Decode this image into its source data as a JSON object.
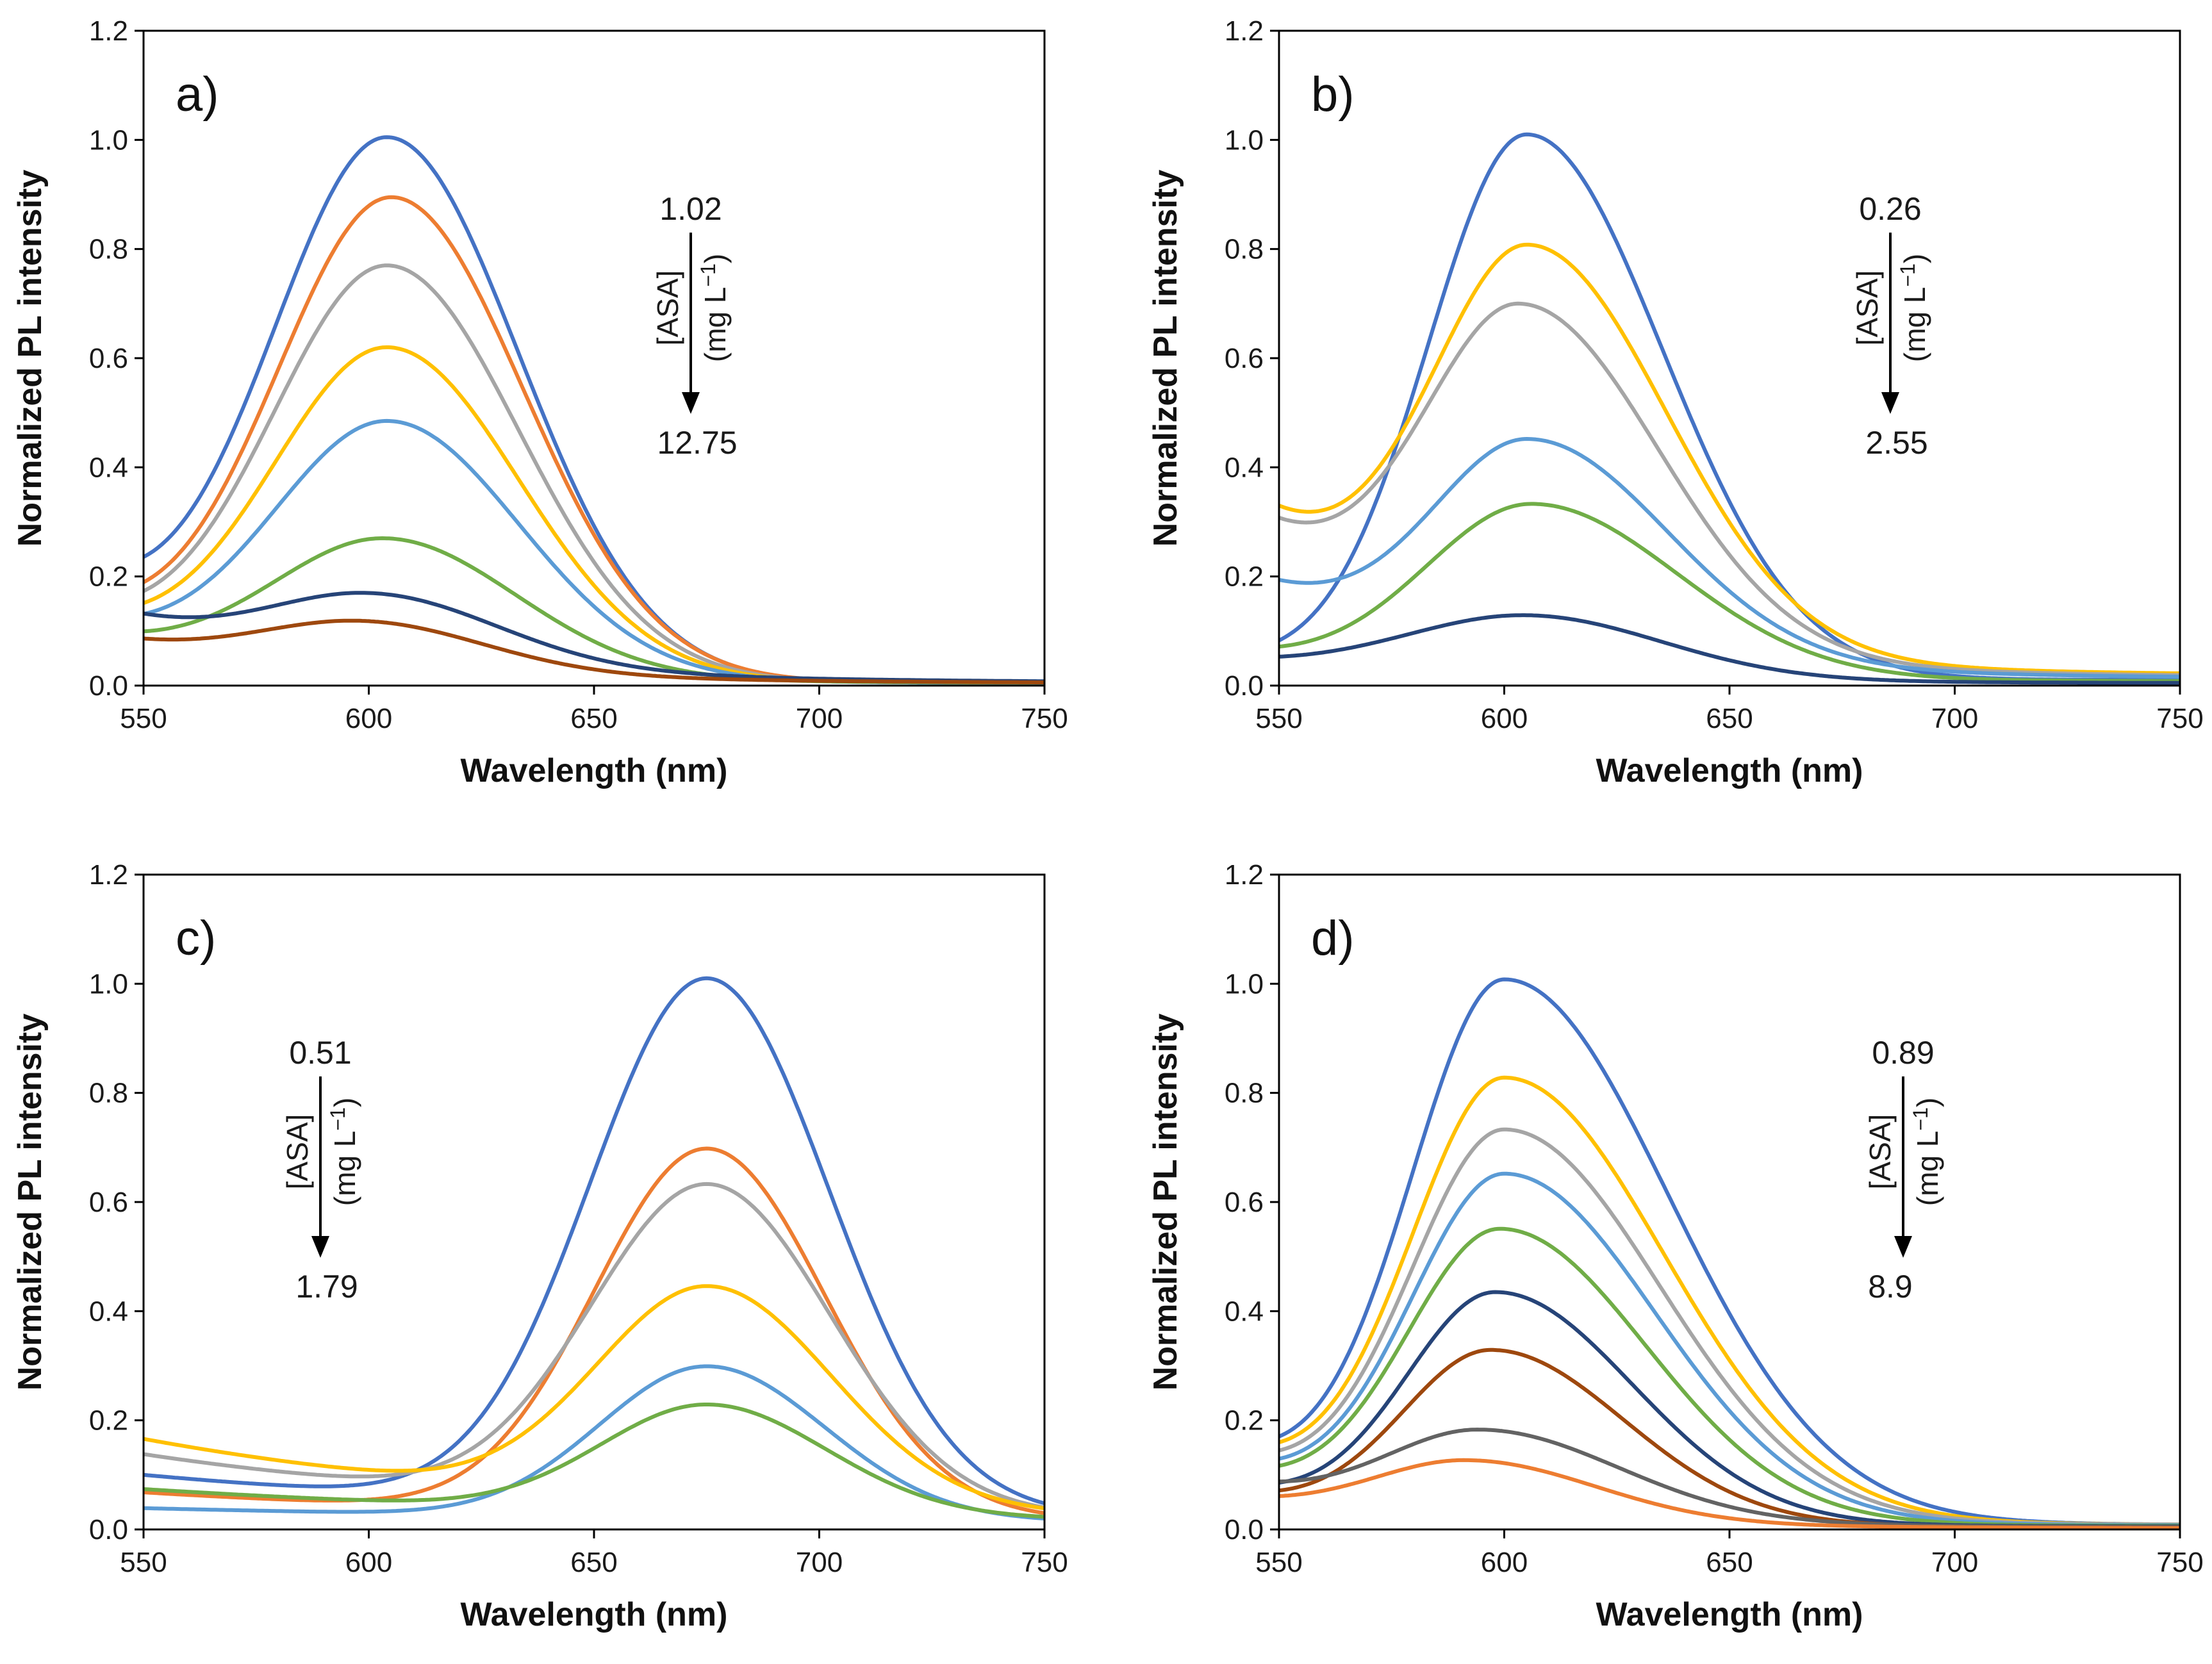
{
  "chart_data": [
    {
      "type": "line",
      "panel_label": "a)",
      "xlabel": "Wavelength (nm)",
      "ylabel": "Normalized PL intensity",
      "xlim": [
        550,
        750
      ],
      "ylim": [
        0,
        1.2
      ],
      "xticks": [
        "550",
        "600",
        "650",
        "700",
        "750"
      ],
      "yticks": [
        "0.0",
        "0.2",
        "0.4",
        "0.6",
        "0.8",
        "1.0",
        "1.2"
      ],
      "annotation": {
        "top": "1.02",
        "bottom": "12.75",
        "label1": "[ASA]",
        "label2": "(mg L",
        "sup": "−1",
        "label2_end": ")",
        "side": "right"
      },
      "series": [
        {
          "name": "1.02",
          "color": "#4472C4",
          "peak": 604,
          "amp": 1.0,
          "sigmaL": 26,
          "sigmaR": 29,
          "base0": 0.13,
          "baseDecay": 10,
          "floor": 0.005
        },
        {
          "name": "s2",
          "color": "#ED7D31",
          "peak": 605,
          "amp": 0.89,
          "sigmaL": 26,
          "sigmaR": 29,
          "base0": 0.1,
          "baseDecay": 12,
          "floor": 0.005
        },
        {
          "name": "s3",
          "color": "#A5A5A5",
          "peak": 604,
          "amp": 0.765,
          "sigmaL": 26,
          "sigmaR": 29,
          "base0": 0.09,
          "baseDecay": 12,
          "floor": 0.005
        },
        {
          "name": "s4",
          "color": "#FFC000",
          "peak": 604,
          "amp": 0.615,
          "sigmaL": 26,
          "sigmaR": 29,
          "base0": 0.085,
          "baseDecay": 12,
          "floor": 0.005
        },
        {
          "name": "s5",
          "color": "#5B9BD5",
          "peak": 604,
          "amp": 0.48,
          "sigmaL": 26,
          "sigmaR": 29,
          "base0": 0.08,
          "baseDecay": 12,
          "floor": 0.005
        },
        {
          "name": "s6",
          "color": "#70AD47",
          "peak": 603,
          "amp": 0.265,
          "sigmaL": 26,
          "sigmaR": 29,
          "base0": 0.07,
          "baseDecay": 14,
          "floor": 0.005
        },
        {
          "name": "s7",
          "color": "#264478",
          "peak": 598,
          "amp": 0.165,
          "sigmaL": 25,
          "sigmaR": 28,
          "base0": 0.12,
          "baseDecay": 18,
          "floor": 0.005
        },
        {
          "name": "12.75",
          "color": "#9E480E",
          "peak": 596,
          "amp": 0.115,
          "sigmaL": 25,
          "sigmaR": 27,
          "base0": 0.075,
          "baseDecay": 18,
          "floor": 0.004
        }
      ]
    },
    {
      "type": "line",
      "panel_label": "b)",
      "xlabel": "Wavelength (nm)",
      "ylabel": "Normalized PL intensity",
      "xlim": [
        550,
        750
      ],
      "ylim": [
        0,
        1.2
      ],
      "xticks": [
        "550",
        "600",
        "650",
        "700",
        "750"
      ],
      "yticks": [
        "0.0",
        "0.2",
        "0.4",
        "0.6",
        "0.8",
        "1.0",
        "1.2"
      ],
      "annotation": {
        "top": "0.26",
        "bottom": "2.55",
        "label1": "[ASA]",
        "label2": "(mg L",
        "sup": "−1",
        "label2_end": ")",
        "side": "right"
      },
      "series": [
        {
          "name": "0.26",
          "color": "#4472C4",
          "peak": 605,
          "amp": 1.0,
          "sigmaL": 22,
          "sigmaR": 30,
          "base0": 0.03,
          "baseDecay": 15,
          "floor": 0.01
        },
        {
          "name": "s2",
          "color": "#FFC000",
          "peak": 605,
          "amp": 0.79,
          "sigmaL": 22,
          "sigmaR": 30,
          "base0": 0.29,
          "baseDecay": 16,
          "floor": 0.018
        },
        {
          "name": "s3",
          "color": "#A5A5A5",
          "peak": 603,
          "amp": 0.685,
          "sigmaL": 22,
          "sigmaR": 30,
          "base0": 0.27,
          "baseDecay": 16,
          "floor": 0.015
        },
        {
          "name": "s4",
          "color": "#5B9BD5",
          "peak": 605,
          "amp": 0.44,
          "sigmaL": 22,
          "sigmaR": 30,
          "base0": 0.17,
          "baseDecay": 18,
          "floor": 0.012
        },
        {
          "name": "s5",
          "color": "#70AD47",
          "peak": 606,
          "amp": 0.325,
          "sigmaL": 24,
          "sigmaR": 32,
          "base0": 0.045,
          "baseDecay": 15,
          "floor": 0.008
        },
        {
          "name": "2.55",
          "color": "#264478",
          "peak": 604,
          "amp": 0.125,
          "sigmaL": 28,
          "sigmaR": 30,
          "base0": 0.035,
          "baseDecay": 18,
          "floor": 0.004
        }
      ]
    },
    {
      "type": "line",
      "panel_label": "c)",
      "xlabel": "Wavelength (nm)",
      "ylabel": "Normalized PL intensity",
      "xlim": [
        550,
        750
      ],
      "ylim": [
        0,
        1.2
      ],
      "xticks": [
        "550",
        "600",
        "650",
        "700",
        "750"
      ],
      "yticks": [
        "0.0",
        "0.2",
        "0.4",
        "0.6",
        "0.8",
        "1.0",
        "1.2"
      ],
      "annotation": {
        "top": "0.51",
        "bottom": "1.79",
        "label1": "[ASA]",
        "label2": "(mg L",
        "sup": "−1",
        "label2_end": ")",
        "side": "left"
      },
      "series": [
        {
          "name": "0.51",
          "color": "#4472C4",
          "peak": 675,
          "amp": 1.0,
          "sigmaL": 26,
          "sigmaR": 27,
          "base0": 0.09,
          "baseDecay": 40,
          "floor": 0.01
        },
        {
          "name": "s2",
          "color": "#ED7D31",
          "peak": 675,
          "amp": 0.69,
          "sigmaL": 25,
          "sigmaR": 26,
          "base0": 0.06,
          "baseDecay": 40,
          "floor": 0.008
        },
        {
          "name": "s3",
          "color": "#A5A5A5",
          "peak": 675,
          "amp": 0.625,
          "sigmaL": 26,
          "sigmaR": 27,
          "base0": 0.13,
          "baseDecay": 35,
          "floor": 0.008
        },
        {
          "name": "s4",
          "color": "#FFC000",
          "peak": 675,
          "amp": 0.44,
          "sigmaL": 25,
          "sigmaR": 27,
          "base0": 0.16,
          "baseDecay": 35,
          "floor": 0.006
        },
        {
          "name": "s5",
          "color": "#5B9BD5",
          "peak": 675,
          "amp": 0.295,
          "sigmaL": 24,
          "sigmaR": 26,
          "base0": 0.035,
          "baseDecay": 60,
          "floor": 0.004
        },
        {
          "name": "1.79",
          "color": "#70AD47",
          "peak": 675,
          "amp": 0.225,
          "sigmaL": 24,
          "sigmaR": 26,
          "base0": 0.07,
          "baseDecay": 45,
          "floor": 0.004
        }
      ]
    },
    {
      "type": "line",
      "panel_label": "d)",
      "xlabel": "Wavelength (nm)",
      "ylabel": "Normalized PL intensity",
      "xlim": [
        550,
        750
      ],
      "ylim": [
        0,
        1.2
      ],
      "xticks": [
        "550",
        "600",
        "650",
        "700",
        "750"
      ],
      "yticks": [
        "0.0",
        "0.2",
        "0.4",
        "0.6",
        "0.8",
        "1.0",
        "1.2"
      ],
      "annotation": {
        "top": "0.89",
        "bottom": "8.9",
        "label1": "[ASA]",
        "label2": "(mg L",
        "sup": "−1",
        "label2_end": ")",
        "side": "right"
      },
      "series": [
        {
          "name": "0.89",
          "color": "#4472C4",
          "peak": 600,
          "amp": 1.0,
          "sigmaL": 21,
          "sigmaR": 36,
          "base0": 0.11,
          "baseDecay": 14,
          "floor": 0.008
        },
        {
          "name": "s2",
          "color": "#FFC000",
          "peak": 600,
          "amp": 0.82,
          "sigmaL": 21,
          "sigmaR": 35,
          "base0": 0.11,
          "baseDecay": 14,
          "floor": 0.008
        },
        {
          "name": "s3",
          "color": "#A5A5A5",
          "peak": 600,
          "amp": 0.725,
          "sigmaL": 21,
          "sigmaR": 34,
          "base0": 0.1,
          "baseDecay": 14,
          "floor": 0.008
        },
        {
          "name": "s4",
          "color": "#5B9BD5",
          "peak": 600,
          "amp": 0.645,
          "sigmaL": 21,
          "sigmaR": 33,
          "base0": 0.09,
          "baseDecay": 14,
          "floor": 0.007
        },
        {
          "name": "s5",
          "color": "#70AD47",
          "peak": 599,
          "amp": 0.545,
          "sigmaL": 21,
          "sigmaR": 32,
          "base0": 0.08,
          "baseDecay": 14,
          "floor": 0.006
        },
        {
          "name": "s6",
          "color": "#264478",
          "peak": 598,
          "amp": 0.43,
          "sigmaL": 20,
          "sigmaR": 30,
          "base0": 0.06,
          "baseDecay": 14,
          "floor": 0.005
        },
        {
          "name": "s7",
          "color": "#9E480E",
          "peak": 597,
          "amp": 0.325,
          "sigmaL": 20,
          "sigmaR": 29,
          "base0": 0.05,
          "baseDecay": 14,
          "floor": 0.004
        },
        {
          "name": "s8",
          "color": "#636363",
          "peak": 594,
          "amp": 0.18,
          "sigmaL": 22,
          "sigmaR": 30,
          "base0": 0.07,
          "baseDecay": 16,
          "floor": 0.003
        },
        {
          "name": "8.9",
          "color": "#ED7D31",
          "peak": 591,
          "amp": 0.125,
          "sigmaL": 22,
          "sigmaR": 28,
          "base0": 0.045,
          "baseDecay": 16,
          "floor": 0.002
        }
      ]
    }
  ]
}
